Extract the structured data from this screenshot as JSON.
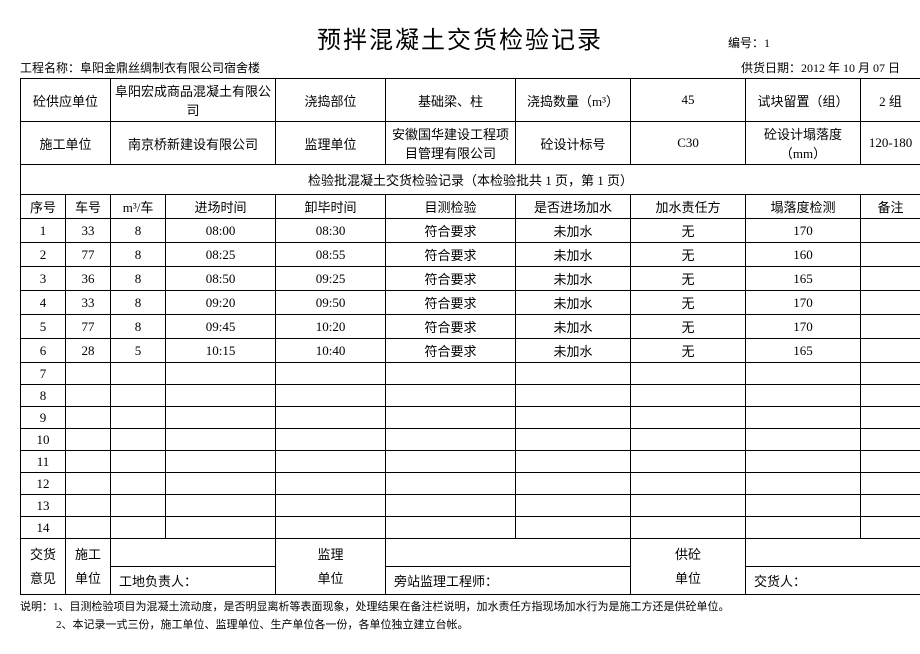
{
  "title": "预拌混凝土交货检验记录",
  "doc_no_label": "编号：",
  "doc_no": "1",
  "project_label": "工程名称：",
  "project_name": "阜阳金鼎丝绸制衣有限公司宿舍楼",
  "supply_date_label": "供货日期：",
  "supply_date": "2012 年 10 月 07 日",
  "info": {
    "r1": {
      "l1": "砼供应单位",
      "v1": "阜阳宏成商品混凝土有限公司",
      "l2": "浇捣部位",
      "v2": "基础梁、柱",
      "l3": "浇捣数量（m³）",
      "v3": "45",
      "l4": "试块留置（组）",
      "v4": "2 组"
    },
    "r2": {
      "l1": "施工单位",
      "v1": "南京桥新建设有限公司",
      "l2": "监理单位",
      "v2": "安徽国华建设工程项目管理有限公司",
      "l3": "砼设计标号",
      "v3": "C30",
      "l4": "砼设计塌落度（mm）",
      "v4": "120-180"
    }
  },
  "section_title": "检验批混凝土交货检验记录（本检验批共 1 页，第 1 页）",
  "columns": [
    "序号",
    "车号",
    "m³/车",
    "进场时间",
    "卸毕时间",
    "目测检验",
    "是否进场加水",
    "加水责任方",
    "塌落度检测",
    "备注"
  ],
  "rows": [
    {
      "n": "1",
      "car": "33",
      "vol": "8",
      "in": "08:00",
      "out": "08:30",
      "insp": "符合要求",
      "water": "未加水",
      "resp": "无",
      "slump": "170",
      "note": ""
    },
    {
      "n": "2",
      "car": "77",
      "vol": "8",
      "in": "08:25",
      "out": "08:55",
      "insp": "符合要求",
      "water": "未加水",
      "resp": "无",
      "slump": "160",
      "note": ""
    },
    {
      "n": "3",
      "car": "36",
      "vol": "8",
      "in": "08:50",
      "out": "09:25",
      "insp": "符合要求",
      "water": "未加水",
      "resp": "无",
      "slump": "165",
      "note": ""
    },
    {
      "n": "4",
      "car": "33",
      "vol": "8",
      "in": "09:20",
      "out": "09:50",
      "insp": "符合要求",
      "water": "未加水",
      "resp": "无",
      "slump": "170",
      "note": ""
    },
    {
      "n": "5",
      "car": "77",
      "vol": "8",
      "in": "09:45",
      "out": "10:20",
      "insp": "符合要求",
      "water": "未加水",
      "resp": "无",
      "slump": "170",
      "note": ""
    },
    {
      "n": "6",
      "car": "28",
      "vol": "5",
      "in": "10:15",
      "out": "10:40",
      "insp": "符合要求",
      "water": "未加水",
      "resp": "无",
      "slump": "165",
      "note": ""
    },
    {
      "n": "7",
      "car": "",
      "vol": "",
      "in": "",
      "out": "",
      "insp": "",
      "water": "",
      "resp": "",
      "slump": "",
      "note": ""
    },
    {
      "n": "8",
      "car": "",
      "vol": "",
      "in": "",
      "out": "",
      "insp": "",
      "water": "",
      "resp": "",
      "slump": "",
      "note": ""
    },
    {
      "n": "9",
      "car": "",
      "vol": "",
      "in": "",
      "out": "",
      "insp": "",
      "water": "",
      "resp": "",
      "slump": "",
      "note": ""
    },
    {
      "n": "10",
      "car": "",
      "vol": "",
      "in": "",
      "out": "",
      "insp": "",
      "water": "",
      "resp": "",
      "slump": "",
      "note": ""
    },
    {
      "n": "11",
      "car": "",
      "vol": "",
      "in": "",
      "out": "",
      "insp": "",
      "water": "",
      "resp": "",
      "slump": "",
      "note": ""
    },
    {
      "n": "12",
      "car": "",
      "vol": "",
      "in": "",
      "out": "",
      "insp": "",
      "water": "",
      "resp": "",
      "slump": "",
      "note": ""
    },
    {
      "n": "13",
      "car": "",
      "vol": "",
      "in": "",
      "out": "",
      "insp": "",
      "water": "",
      "resp": "",
      "slump": "",
      "note": ""
    },
    {
      "n": "14",
      "car": "",
      "vol": "",
      "in": "",
      "out": "",
      "insp": "",
      "water": "",
      "resp": "",
      "slump": "",
      "note": ""
    }
  ],
  "sig": {
    "opinion_l1": "交货",
    "opinion_l2": "意见",
    "construct": "施工\n单位",
    "supervise": "监理\n单位",
    "supplier": "供砼\n单位",
    "site_leader": "工地负责人：",
    "station_eng": "旁站监理工程师：",
    "deliverer": "交货人："
  },
  "notes_label": "说明：",
  "notes1": "1、目测检验项目为混凝土流动度，是否明显离析等表面现象，处理结果在备注栏说明，加水责任方指现场加水行为是施工方还是供砼单位。",
  "notes2": "2、本记录一式三份，施工单位、监理单位、生产单位各一份，各单位独立建立台帐。"
}
